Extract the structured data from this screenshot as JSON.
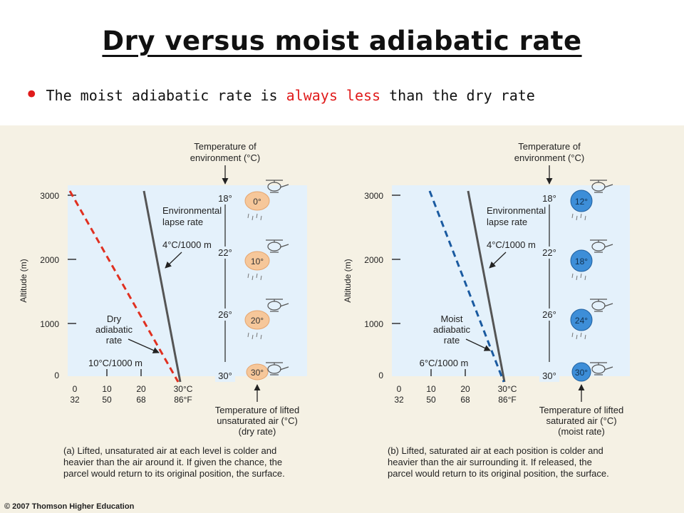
{
  "slide": {
    "title": "Dry versus moist adiabatic rate",
    "bullet": {
      "prefix": "The moist adiabatic rate is ",
      "highlight": "always less",
      "suffix": " than the dry rate"
    },
    "accent_color": "#e01b1b"
  },
  "figure": {
    "copyright": "© 2007 Thomson Higher Education",
    "panels": [
      {
        "id": "a",
        "y_axis_label": "Altitude (m)",
        "y_ticks": [
          "3000",
          "2000",
          "1000",
          "0"
        ],
        "x_ticks_c": [
          "0",
          "10",
          "20",
          "30°C"
        ],
        "x_ticks_f": [
          "32",
          "50",
          "68",
          "86°F"
        ],
        "env_title_1": "Temperature of",
        "env_title_2": "environment (°C)",
        "env_temps": [
          "18°",
          "22°",
          "26°",
          "30°"
        ],
        "parcel_temps": [
          "0°",
          "10°",
          "20°",
          "30°"
        ],
        "parcel_color": "#f6c79a",
        "line_color": "#e03020",
        "env_lapse_1": "Environmental",
        "env_lapse_2": "lapse rate",
        "env_rate": "4°C/1000 m",
        "adiabatic_1": "Dry",
        "adiabatic_2": "adiabatic",
        "adiabatic_3": "rate",
        "adiabatic_rate": "10°C/1000 m",
        "lifted_1": "Temperature of lifted",
        "lifted_2": "unsaturated air (°C)",
        "lifted_3": "(dry rate)",
        "caption_1": "(a) Lifted, unsaturated air at each level is colder and",
        "caption_2": "heavier than the air around it. If given the chance, the",
        "caption_3": "parcel would return to its original position, the surface."
      },
      {
        "id": "b",
        "y_axis_label": "Altitude (m)",
        "y_ticks": [
          "3000",
          "2000",
          "1000",
          "0"
        ],
        "x_ticks_c": [
          "0",
          "10",
          "20",
          "30°C"
        ],
        "x_ticks_f": [
          "32",
          "50",
          "68",
          "86°F"
        ],
        "env_title_1": "Temperature of",
        "env_title_2": "environment (°C)",
        "env_temps": [
          "18°",
          "22°",
          "26°",
          "30°"
        ],
        "parcel_temps": [
          "12°",
          "18°",
          "24°",
          "30°"
        ],
        "parcel_color": "#3d8ed8",
        "line_color": "#1a5aa0",
        "env_lapse_1": "Environmental",
        "env_lapse_2": "lapse rate",
        "env_rate": "4°C/1000 m",
        "adiabatic_1": "Moist",
        "adiabatic_2": "adiabatic",
        "adiabatic_3": "rate",
        "adiabatic_rate": "6°C/1000 m",
        "lifted_1": "Temperature of lifted",
        "lifted_2": "saturated air (°C)",
        "lifted_3": "(moist rate)",
        "caption_1": "(b) Lifted, saturated air at each position is colder and",
        "caption_2": "heavier than the air surrounding it. If released, the",
        "caption_3": "parcel would return to its original position, the surface."
      }
    ]
  }
}
